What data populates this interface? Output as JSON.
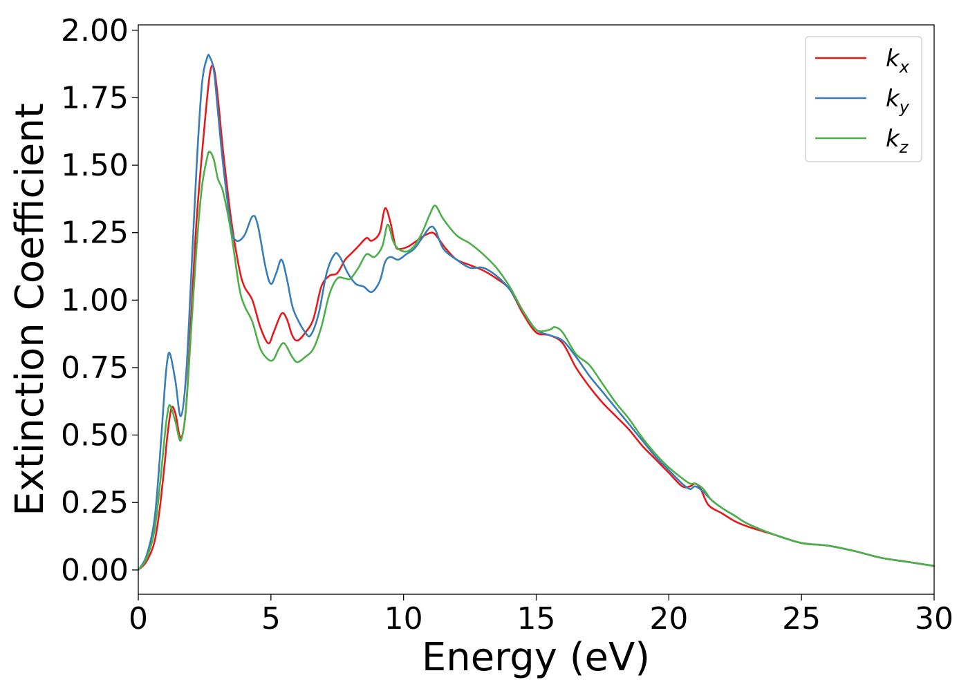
{
  "chart_data": {
    "type": "line",
    "xlabel": "Energy (eV)",
    "ylabel": "Extinction Coefficient",
    "xlim": [
      0,
      30
    ],
    "ylim": [
      -0.09,
      2.02
    ],
    "xticks": [
      0,
      5,
      10,
      15,
      20,
      25,
      30
    ],
    "yticks": [
      0.0,
      0.25,
      0.5,
      0.75,
      1.0,
      1.25,
      1.5,
      1.75,
      2.0
    ],
    "xtick_labels": [
      "0",
      "5",
      "10",
      "15",
      "20",
      "25",
      "30"
    ],
    "ytick_labels": [
      "0.00",
      "0.25",
      "0.50",
      "0.75",
      "1.00",
      "1.25",
      "1.50",
      "1.75",
      "2.00"
    ],
    "grid": false,
    "legend_position": "top-right",
    "series": [
      {
        "name": "k_x",
        "label_base": "k",
        "label_sub": "x",
        "color": "#e41a1c",
        "x": [
          0.0,
          0.3,
          0.6,
          0.8,
          1.0,
          1.1,
          1.25,
          1.4,
          1.6,
          1.8,
          2.0,
          2.2,
          2.5,
          2.7,
          2.85,
          3.0,
          3.2,
          3.5,
          3.8,
          4.0,
          4.3,
          4.6,
          4.9,
          5.1,
          5.4,
          5.6,
          5.8,
          6.0,
          6.3,
          6.6,
          6.9,
          7.2,
          7.5,
          7.8,
          8.0,
          8.3,
          8.6,
          8.8,
          9.1,
          9.3,
          9.5,
          9.7,
          9.9,
          10.2,
          10.5,
          10.8,
          11.1,
          11.3,
          11.6,
          12.0,
          12.5,
          13.0,
          13.5,
          14.0,
          14.5,
          15.0,
          15.5,
          16.0,
          16.5,
          17.0,
          17.5,
          18.0,
          18.5,
          19.0,
          19.5,
          20.0,
          20.5,
          20.8,
          21.0,
          21.2,
          21.5,
          22.0,
          22.5,
          23.0,
          24.0,
          25.0,
          26.0,
          27.0,
          28.0,
          29.0,
          30.0
        ],
        "y": [
          0.0,
          0.03,
          0.1,
          0.22,
          0.4,
          0.5,
          0.6,
          0.58,
          0.49,
          0.6,
          0.95,
          1.3,
          1.65,
          1.84,
          1.86,
          1.75,
          1.55,
          1.3,
          1.12,
          1.05,
          1.0,
          0.9,
          0.84,
          0.88,
          0.95,
          0.93,
          0.87,
          0.85,
          0.88,
          0.93,
          1.05,
          1.09,
          1.1,
          1.15,
          1.17,
          1.2,
          1.23,
          1.22,
          1.25,
          1.34,
          1.29,
          1.2,
          1.19,
          1.2,
          1.22,
          1.24,
          1.25,
          1.23,
          1.19,
          1.15,
          1.13,
          1.11,
          1.08,
          1.04,
          0.95,
          0.88,
          0.87,
          0.84,
          0.75,
          0.68,
          0.62,
          0.57,
          0.52,
          0.46,
          0.41,
          0.36,
          0.31,
          0.31,
          0.32,
          0.3,
          0.24,
          0.21,
          0.18,
          0.16,
          0.13,
          0.1,
          0.09,
          0.07,
          0.045,
          0.03,
          0.015
        ]
      },
      {
        "name": "k_y",
        "label_base": "k",
        "label_sub": "y",
        "color": "#377eb8",
        "x": [
          0.0,
          0.3,
          0.6,
          0.8,
          1.0,
          1.1,
          1.2,
          1.4,
          1.6,
          1.8,
          2.0,
          2.2,
          2.4,
          2.6,
          2.7,
          2.85,
          3.0,
          3.2,
          3.5,
          3.7,
          4.0,
          4.3,
          4.5,
          4.8,
          5.0,
          5.2,
          5.4,
          5.6,
          5.8,
          6.0,
          6.3,
          6.5,
          6.8,
          7.1,
          7.4,
          7.6,
          7.9,
          8.2,
          8.5,
          8.8,
          9.1,
          9.3,
          9.5,
          9.8,
          10.1,
          10.4,
          10.7,
          11.0,
          11.2,
          11.5,
          12.0,
          12.5,
          13.0,
          13.5,
          14.0,
          14.5,
          15.0,
          15.5,
          16.0,
          16.5,
          17.0,
          17.5,
          18.0,
          18.5,
          19.0,
          19.5,
          20.0,
          20.5,
          20.8,
          21.0,
          21.3,
          21.6,
          22.0,
          22.5,
          23.0,
          24.0,
          25.0,
          26.0,
          27.0,
          28.0,
          29.0,
          30.0
        ],
        "y": [
          0.0,
          0.05,
          0.18,
          0.4,
          0.68,
          0.78,
          0.8,
          0.7,
          0.57,
          0.72,
          1.1,
          1.5,
          1.8,
          1.9,
          1.9,
          1.85,
          1.7,
          1.5,
          1.27,
          1.22,
          1.24,
          1.31,
          1.28,
          1.12,
          1.06,
          1.1,
          1.15,
          1.08,
          0.98,
          0.93,
          0.88,
          0.87,
          0.95,
          1.1,
          1.17,
          1.16,
          1.1,
          1.06,
          1.05,
          1.03,
          1.07,
          1.14,
          1.16,
          1.15,
          1.17,
          1.19,
          1.23,
          1.27,
          1.26,
          1.19,
          1.15,
          1.12,
          1.12,
          1.09,
          1.04,
          0.96,
          0.89,
          0.87,
          0.85,
          0.79,
          0.72,
          0.66,
          0.6,
          0.54,
          0.48,
          0.42,
          0.37,
          0.32,
          0.3,
          0.31,
          0.29,
          0.26,
          0.23,
          0.2,
          0.17,
          0.13,
          0.1,
          0.09,
          0.07,
          0.045,
          0.03,
          0.015
        ]
      },
      {
        "name": "k_z",
        "label_base": "k",
        "label_sub": "z",
        "color": "#4daf4a",
        "x": [
          0.0,
          0.3,
          0.6,
          0.8,
          1.0,
          1.1,
          1.2,
          1.4,
          1.6,
          1.8,
          2.0,
          2.2,
          2.4,
          2.6,
          2.7,
          2.85,
          3.0,
          3.2,
          3.5,
          3.8,
          4.0,
          4.3,
          4.6,
          4.9,
          5.1,
          5.3,
          5.5,
          5.8,
          6.0,
          6.3,
          6.6,
          6.9,
          7.2,
          7.5,
          7.8,
          8.0,
          8.3,
          8.6,
          8.9,
          9.2,
          9.4,
          9.6,
          9.8,
          10.1,
          10.4,
          10.7,
          11.0,
          11.2,
          11.5,
          12.0,
          12.5,
          13.0,
          13.5,
          14.0,
          14.5,
          15.0,
          15.5,
          15.7,
          16.0,
          16.5,
          17.0,
          17.5,
          18.0,
          18.5,
          19.0,
          19.5,
          20.0,
          20.5,
          20.8,
          21.0,
          21.3,
          21.6,
          22.0,
          22.5,
          23.0,
          24.0,
          25.0,
          26.0,
          27.0,
          28.0,
          29.0,
          30.0
        ],
        "y": [
          0.0,
          0.04,
          0.14,
          0.3,
          0.5,
          0.58,
          0.61,
          0.55,
          0.48,
          0.6,
          0.9,
          1.2,
          1.42,
          1.53,
          1.55,
          1.52,
          1.45,
          1.4,
          1.25,
          1.05,
          0.98,
          0.92,
          0.82,
          0.78,
          0.78,
          0.82,
          0.84,
          0.79,
          0.77,
          0.79,
          0.82,
          0.9,
          1.02,
          1.08,
          1.08,
          1.08,
          1.12,
          1.17,
          1.16,
          1.2,
          1.28,
          1.22,
          1.19,
          1.18,
          1.2,
          1.25,
          1.32,
          1.35,
          1.3,
          1.24,
          1.21,
          1.17,
          1.12,
          1.05,
          0.96,
          0.89,
          0.89,
          0.9,
          0.88,
          0.8,
          0.76,
          0.69,
          0.62,
          0.56,
          0.49,
          0.43,
          0.38,
          0.34,
          0.32,
          0.32,
          0.3,
          0.26,
          0.23,
          0.2,
          0.17,
          0.13,
          0.1,
          0.09,
          0.07,
          0.045,
          0.03,
          0.015
        ]
      }
    ]
  }
}
